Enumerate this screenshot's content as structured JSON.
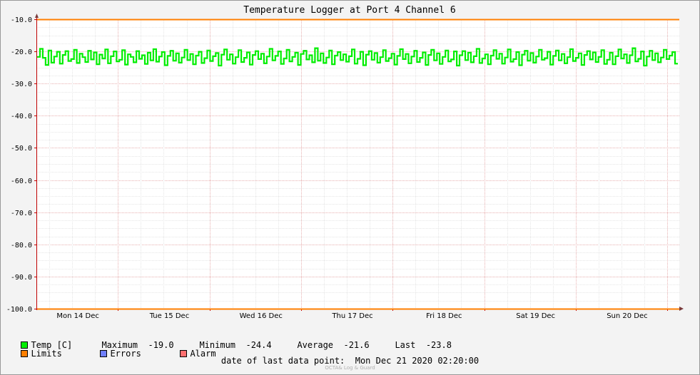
{
  "chart_data": {
    "type": "line",
    "title": "Temperature Logger at Port 4 Channel 6",
    "xlabel": "",
    "ylabel": "",
    "ylim": [
      -100.0,
      -10.0
    ],
    "y_ticks": [
      "-10.0",
      "-20.0",
      "-30.0",
      "-40.0",
      "-50.0",
      "-60.0",
      "-70.0",
      "-80.0",
      "-90.0",
      "-100.0"
    ],
    "x_tick_labels": [
      "Mon 14 Dec",
      "Tue 15 Dec",
      "Wed 16 Dec",
      "Thu 17 Dec",
      "Fri 18 Dec",
      "Sat 19 Dec",
      "Sun 20 Dec"
    ],
    "grid": true,
    "series": [
      {
        "name": "Temp [C]",
        "color": "#00ee00",
        "range": [
          -24.4,
          -19.0
        ],
        "mean": -21.6,
        "last": -23.8,
        "samples": [
          -21.7,
          -19.2,
          -22.0,
          -24.2,
          -19.7,
          -23.5,
          -21.6,
          -20.1,
          -23.8,
          -21.1,
          -19.9,
          -23.0,
          -22.4,
          -19.5,
          -23.6,
          -20.7,
          -21.8,
          -23.3,
          -19.8,
          -22.5,
          -20.3,
          -24.0,
          -21.0,
          -22.2,
          -19.4,
          -23.7,
          -21.5,
          -20.0,
          -23.1,
          -22.6,
          -19.6,
          -24.1,
          -20.9,
          -21.7,
          -23.4,
          -19.9,
          -22.3,
          -21.2,
          -23.9,
          -20.4,
          -22.8,
          -19.3,
          -23.2,
          -21.6,
          -20.2,
          -24.3,
          -21.4,
          -19.8,
          -22.9,
          -20.6,
          -23.5,
          -21.9,
          -19.5,
          -22.7,
          -20.8,
          -24.0,
          -21.3,
          -20.1,
          -23.6,
          -22.1,
          -19.7,
          -23.0,
          -21.5,
          -20.5,
          -24.4,
          -21.0,
          -19.4,
          -22.6,
          -20.9,
          -23.8,
          -21.8,
          -19.6,
          -23.3,
          -22.0,
          -20.3,
          -24.1,
          -21.1,
          -19.9,
          -22.4,
          -20.7,
          -23.7,
          -21.6,
          -19.2,
          -22.8,
          -21.4,
          -20.0,
          -23.9,
          -22.2,
          -19.5,
          -23.1,
          -21.7,
          -20.4,
          -24.2,
          -20.8,
          -19.8,
          -22.5,
          -21.2,
          -23.4,
          -19.0,
          -22.9,
          -20.6,
          -23.6,
          -21.9,
          -19.7,
          -24.0,
          -21.3,
          -20.2,
          -22.7,
          -20.9,
          -23.2,
          -21.5,
          -19.4,
          -23.8,
          -22.3,
          -20.1,
          -24.3,
          -21.0,
          -19.9,
          -22.6,
          -20.5,
          -23.5,
          -21.8,
          -19.6,
          -23.0,
          -22.1,
          -20.7,
          -24.1,
          -21.4,
          -19.3,
          -22.4,
          -20.8,
          -23.7,
          -21.6,
          -19.8,
          -23.3,
          -22.0,
          -20.3,
          -24.2,
          -21.1,
          -19.5,
          -22.8,
          -20.6,
          -23.9,
          -21.7,
          -19.7,
          -23.1,
          -22.5,
          -20.0,
          -24.4,
          -21.2,
          -19.9,
          -22.7,
          -20.4,
          -23.4,
          -21.5,
          -19.2,
          -23.6,
          -22.2,
          -20.9,
          -24.0,
          -21.3,
          -19.6,
          -22.3,
          -20.7,
          -23.8,
          -21.9,
          -19.4,
          -23.2,
          -22.4,
          -20.2,
          -24.3,
          -21.0,
          -19.8,
          -22.9,
          -20.5,
          -23.5,
          -21.6,
          -19.5,
          -22.6,
          -22.1,
          -20.1,
          -24.1,
          -21.4,
          -19.7,
          -22.8,
          -20.8,
          -23.7,
          -21.8,
          -19.3,
          -23.0,
          -22.0,
          -20.6,
          -24.2,
          -21.1,
          -19.9,
          -22.5,
          -20.3,
          -23.3,
          -21.7,
          -19.6,
          -23.9,
          -22.6,
          -20.4,
          -24.0,
          -21.5,
          -19.4,
          -22.2,
          -20.9,
          -23.6,
          -21.2,
          -19.0,
          -23.1,
          -22.3,
          -20.0,
          -24.4,
          -21.6,
          -19.8,
          -22.7,
          -20.6,
          -23.4,
          -21.9,
          -19.5,
          -22.4,
          -21.3,
          -20.2,
          -23.8
        ]
      },
      {
        "name": "Limits",
        "color": "#ff7f00",
        "values": [
          -10.0,
          -100.0
        ]
      },
      {
        "name": "Errors",
        "color": "#6f7fff"
      },
      {
        "name": "Alarm",
        "color": "#ff6f6f"
      }
    ]
  },
  "legend": {
    "temp_label": "Temp [C]",
    "maximum_label": "Maximum",
    "maximum_value": "-19.0",
    "minimum_label": "Minimum",
    "minimum_value": "-24.4",
    "average_label": "Average",
    "average_value": "-21.6",
    "last_label": "Last",
    "last_value": "-23.8",
    "limits_label": "Limits",
    "errors_label": "Errors",
    "alarm_label": "Alarm"
  },
  "footer": {
    "date_label": "date of last data point:",
    "date_value": "Mon Dec 21 2020 02:20:00",
    "watermark": "OCTA& Log & Guard"
  }
}
